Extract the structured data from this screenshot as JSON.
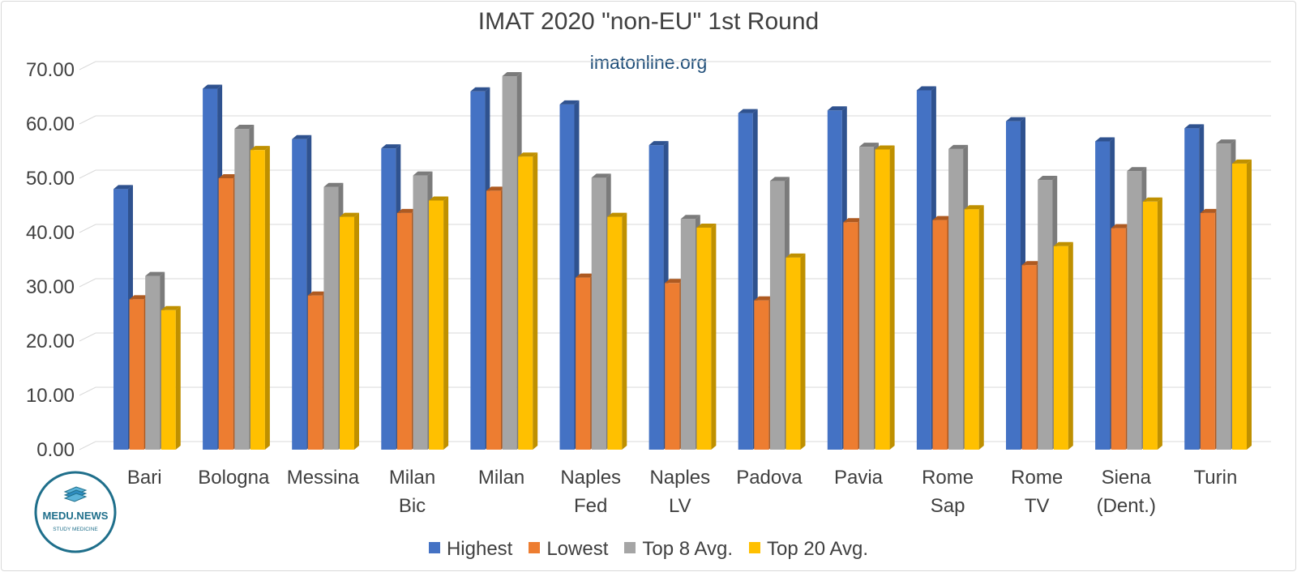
{
  "chart_data": {
    "type": "bar",
    "title": "IMAT 2020 \"non-EU\" 1st Round",
    "annotation": "imatonline.org",
    "categories": [
      [
        "Bari"
      ],
      [
        "Bologna"
      ],
      [
        "Messina"
      ],
      [
        "Milan",
        "Bic"
      ],
      [
        "Milan"
      ],
      [
        "Naples",
        "Fed"
      ],
      [
        "Naples",
        "LV"
      ],
      [
        "Padova"
      ],
      [
        "Pavia"
      ],
      [
        "Rome",
        "Sap"
      ],
      [
        "Rome",
        "TV"
      ],
      [
        "Siena",
        "(Dent.)"
      ],
      [
        "Turin"
      ]
    ],
    "series": [
      {
        "name": "Highest",
        "color": "#4472c4",
        "side": "#2f528f",
        "values": [
          48.0,
          66.5,
          57.2,
          55.5,
          66.0,
          63.6,
          56.1,
          62.0,
          62.5,
          66.2,
          60.5,
          56.8,
          59.2
        ]
      },
      {
        "name": "Lowest",
        "color": "#ed7d31",
        "side": "#ae5a21",
        "values": [
          27.7,
          50.0,
          28.4,
          43.6,
          47.7,
          31.7,
          30.7,
          27.5,
          41.9,
          42.3,
          34.0,
          40.8,
          43.6
        ]
      },
      {
        "name": "Top 8 Avg.",
        "color": "#a5a5a5",
        "side": "#7b7b7b",
        "values": [
          32.0,
          59.1,
          48.4,
          50.5,
          68.8,
          50.1,
          42.5,
          49.5,
          55.8,
          55.4,
          49.7,
          51.3,
          56.4
        ]
      },
      {
        "name": "Top 20 Avg.",
        "color": "#ffc000",
        "side": "#bf9000",
        "values": [
          25.7,
          55.2,
          42.9,
          45.9,
          54.0,
          42.9,
          40.9,
          35.4,
          55.3,
          44.3,
          37.5,
          45.7,
          52.7
        ]
      }
    ],
    "yticks": [
      "0.00",
      "10.00",
      "20.00",
      "30.00",
      "40.00",
      "50.00",
      "60.00",
      "70.00"
    ],
    "ylim": [
      0,
      70
    ],
    "grid": true,
    "legend_position": "bottom"
  },
  "logo": {
    "name": "MEDU.NEWS",
    "tagline": "STUDY MEDICINE"
  }
}
